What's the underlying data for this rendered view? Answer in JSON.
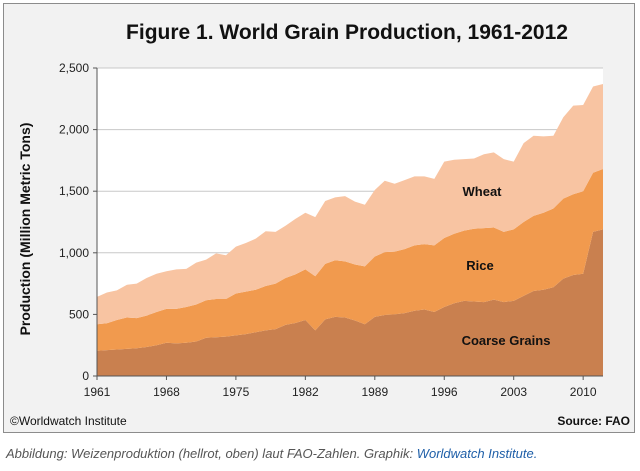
{
  "footer": {
    "copyright": "©Worldwatch Institute",
    "source": "Source: FAO"
  },
  "caption": {
    "text": "Abbildung: Weizenproduktion (hellrot, oben) laut FAO-Zahlen. Graphik: ",
    "link_text": "Worldwatch Institute."
  },
  "colors": {
    "coarse": "#c9804f",
    "rice": "#f19a4e",
    "wheat": "#f8c4a2",
    "plot_bg": "#ffffff",
    "grid": "#c8c8c8",
    "frame_bg": "#f2f2f2"
  },
  "chart_data": {
    "type": "area",
    "stacked": true,
    "title": "Figure 1. World Grain Production, 1961-2012",
    "ylabel": "Production (Million Metric Tons)",
    "xlabel": "",
    "ylim": [
      0,
      2500
    ],
    "yticks": [
      0,
      500,
      1000,
      1500,
      2000,
      2500
    ],
    "ytick_labels": [
      "0",
      "500",
      "1,000",
      "1,500",
      "2,000",
      "2,500"
    ],
    "xlim": [
      1961,
      2012
    ],
    "xticks": [
      1961,
      1968,
      1975,
      1982,
      1989,
      1996,
      2003,
      2010
    ],
    "xtick_labels": [
      "1961",
      "1968",
      "1975",
      "1982",
      "1989",
      "1996",
      "2003",
      "2010"
    ],
    "grid": "horizontal",
    "x": [
      1961,
      1962,
      1963,
      1964,
      1965,
      1966,
      1967,
      1968,
      1969,
      1970,
      1971,
      1972,
      1973,
      1974,
      1975,
      1976,
      1977,
      1978,
      1979,
      1980,
      1981,
      1982,
      1983,
      1984,
      1985,
      1986,
      1987,
      1988,
      1989,
      1990,
      1991,
      1992,
      1993,
      1994,
      1995,
      1996,
      1997,
      1998,
      1999,
      2000,
      2001,
      2002,
      2003,
      2004,
      2005,
      2006,
      2007,
      2008,
      2009,
      2010,
      2011,
      2012
    ],
    "series": [
      {
        "name": "Coarse Grains",
        "values": [
          205,
          210,
          215,
          220,
          225,
          235,
          250,
          270,
          265,
          270,
          280,
          310,
          315,
          320,
          330,
          340,
          355,
          370,
          380,
          415,
          430,
          455,
          370,
          460,
          480,
          475,
          450,
          420,
          480,
          495,
          500,
          510,
          530,
          540,
          520,
          560,
          590,
          610,
          605,
          600,
          620,
          600,
          610,
          650,
          690,
          700,
          720,
          790,
          820,
          830,
          1170,
          1190
        ]
      },
      {
        "name": "Rice",
        "values": [
          215,
          218,
          240,
          255,
          245,
          255,
          270,
          275,
          280,
          290,
          300,
          305,
          310,
          305,
          340,
          345,
          345,
          360,
          370,
          380,
          395,
          410,
          440,
          450,
          460,
          455,
          455,
          470,
          490,
          510,
          510,
          520,
          530,
          530,
          540,
          560,
          565,
          570,
          590,
          600,
          585,
          570,
          580,
          600,
          610,
          625,
          640,
          650,
          655,
          670,
          480,
          490
        ]
      },
      {
        "name": "Wheat",
        "values": [
          222,
          250,
          240,
          265,
          280,
          305,
          310,
          305,
          320,
          310,
          340,
          330,
          370,
          355,
          380,
          395,
          415,
          445,
          420,
          425,
          450,
          460,
          480,
          510,
          510,
          530,
          510,
          500,
          540,
          580,
          550,
          560,
          560,
          550,
          540,
          620,
          600,
          580,
          570,
          600,
          610,
          590,
          550,
          640,
          650,
          620,
          590,
          660,
          720,
          700,
          700,
          690
        ]
      }
    ],
    "annotations": [
      "Wheat",
      "Rice",
      "Coarse Grains"
    ]
  }
}
